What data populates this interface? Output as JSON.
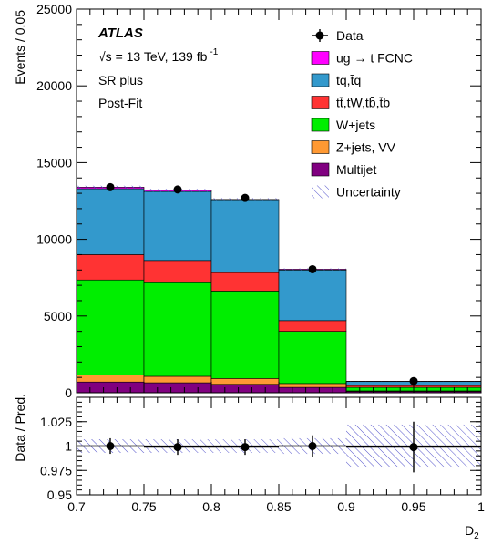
{
  "figure": {
    "atlas_label": "ATLAS",
    "energy_label": "√s = 13 TeV, 139 fb",
    "energy_superscript": "-1",
    "region_label": "SR plus",
    "fit_label": "Post-Fit",
    "x_axis_label": "D",
    "x_axis_subscript": "2",
    "ylabel_top": "Events / 0.05",
    "ylabel_bottom": "Data / Pred."
  },
  "colors": {
    "multijet": "#800080",
    "zjets_vv": "#ff9933",
    "wjets": "#00ee00",
    "ttbar_tw": "#ff3333",
    "tq": "#3399cc",
    "fcnc": "#ff00ff",
    "uncertainty": "#5555cc"
  },
  "chart_data": [
    {
      "type": "bar",
      "stacked": true,
      "bin_edges": [
        0.7,
        0.75,
        0.8,
        0.85,
        0.9,
        1.0
      ],
      "xlim": [
        0.7,
        1.0
      ],
      "ylim": [
        0,
        25000
      ],
      "ylabel": "Events / 0.05",
      "x_ticks": [
        "0.7",
        "0.75",
        "0.8",
        "0.85",
        "0.9",
        "0.95",
        "1"
      ],
      "y_ticks": [
        "0",
        "5000",
        "10000",
        "15000",
        "20000",
        "25000"
      ],
      "series": [
        {
          "name": "Multijet",
          "color_key": "multijet",
          "values": [
            700,
            650,
            550,
            350,
            80
          ]
        },
        {
          "name": "Z+jets, VV",
          "color_key": "zjets_vv",
          "values": [
            450,
            420,
            380,
            250,
            40
          ]
        },
        {
          "name": "W+jets",
          "color_key": "wjets",
          "values": [
            6200,
            6100,
            5700,
            3400,
            230
          ]
        },
        {
          "name": "tt̄,tW,tb̄,t̄b",
          "color_key": "ttbar_tw",
          "values": [
            1650,
            1450,
            1200,
            700,
            120
          ]
        },
        {
          "name": "tq,t̄q",
          "color_key": "tq",
          "values": [
            4300,
            4500,
            4700,
            3300,
            260
          ]
        },
        {
          "name": "ug → t FCNC",
          "color_key": "fcnc",
          "values": [
            100,
            80,
            70,
            50,
            20
          ]
        }
      ],
      "data_series": {
        "name": "Data",
        "x": [
          0.725,
          0.775,
          0.825,
          0.875,
          0.95
        ],
        "y": [
          13400,
          13250,
          12700,
          8050,
          760
        ]
      },
      "uncertainty_label": "Uncertainty",
      "legend": {
        "placement": "top-right",
        "entries": [
          "Data",
          "ug → t FCNC",
          "tq,t̄q",
          "tt̄,tW,tb̄,t̄b",
          "W+jets",
          "Z+jets, VV",
          "Multijet",
          "Uncertainty"
        ]
      }
    },
    {
      "type": "scatter",
      "ylabel": "Data / Pred.",
      "xlabel": "D2",
      "xlim": [
        0.7,
        1.0
      ],
      "ylim": [
        0.95,
        1.05
      ],
      "x_ticks": [
        "0.7",
        "0.75",
        "0.8",
        "0.85",
        "0.9",
        "0.95",
        "1"
      ],
      "y_ticks": [
        "0.95",
        "0.975",
        "1",
        "1.025"
      ],
      "reference_line": 1.0,
      "points": {
        "x": [
          0.725,
          0.775,
          0.825,
          0.875,
          0.95
        ],
        "y": [
          1.0,
          0.999,
          0.999,
          1.0,
          0.999
        ],
        "yerr": [
          0.008,
          0.008,
          0.008,
          0.011,
          0.026
        ],
        "xerr": [
          0.025,
          0.025,
          0.025,
          0.025,
          0.05
        ]
      },
      "uncertainty_band": {
        "bin_edges": [
          0.7,
          0.75,
          0.8,
          0.85,
          0.9,
          1.0
        ],
        "half_width": [
          0.007,
          0.007,
          0.007,
          0.008,
          0.022
        ]
      }
    }
  ]
}
